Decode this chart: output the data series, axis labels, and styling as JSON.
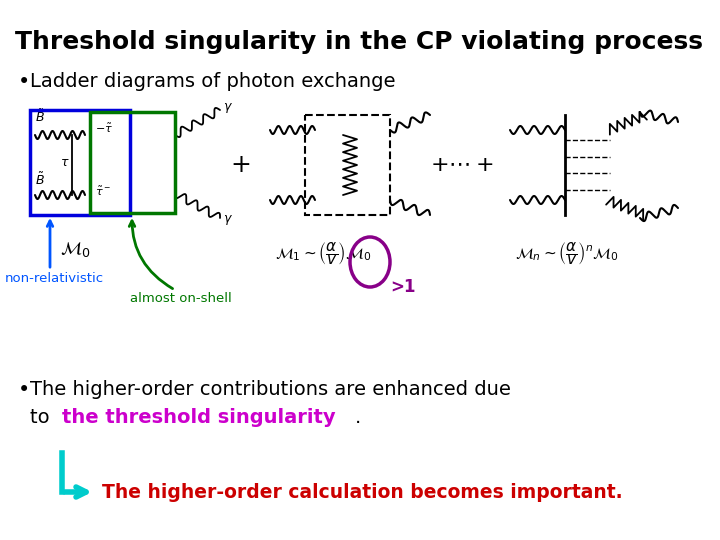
{
  "title": "Threshold singularity in the CP violating process",
  "bg_color": "#ffffff",
  "bullet1": "Ladder diagrams of photon exchange",
  "non_rel_label": "non-relativistic",
  "non_rel_color": "#0055ff",
  "almost_label": "almost on-shell",
  "almost_color": "#007700",
  "gt1_label": ">1",
  "gt1_color": "#880088",
  "bullet2_line1": "The higher-order contributions are enhanced due",
  "bullet2_line2_pre": "to  ",
  "bullet2_highlight": "the threshold singularity",
  "bullet2_line2_post": ".",
  "bullet2_color": "#000000",
  "bullet2_highlight_color": "#cc00cc",
  "arrow_label": "The higher-order calculation becomes important.",
  "arrow_label_color": "#cc0000",
  "arrow_color": "#00cccc",
  "blue_box_color": "#0000dd",
  "green_box_color": "#007700",
  "purple_oval_color": "#880088"
}
